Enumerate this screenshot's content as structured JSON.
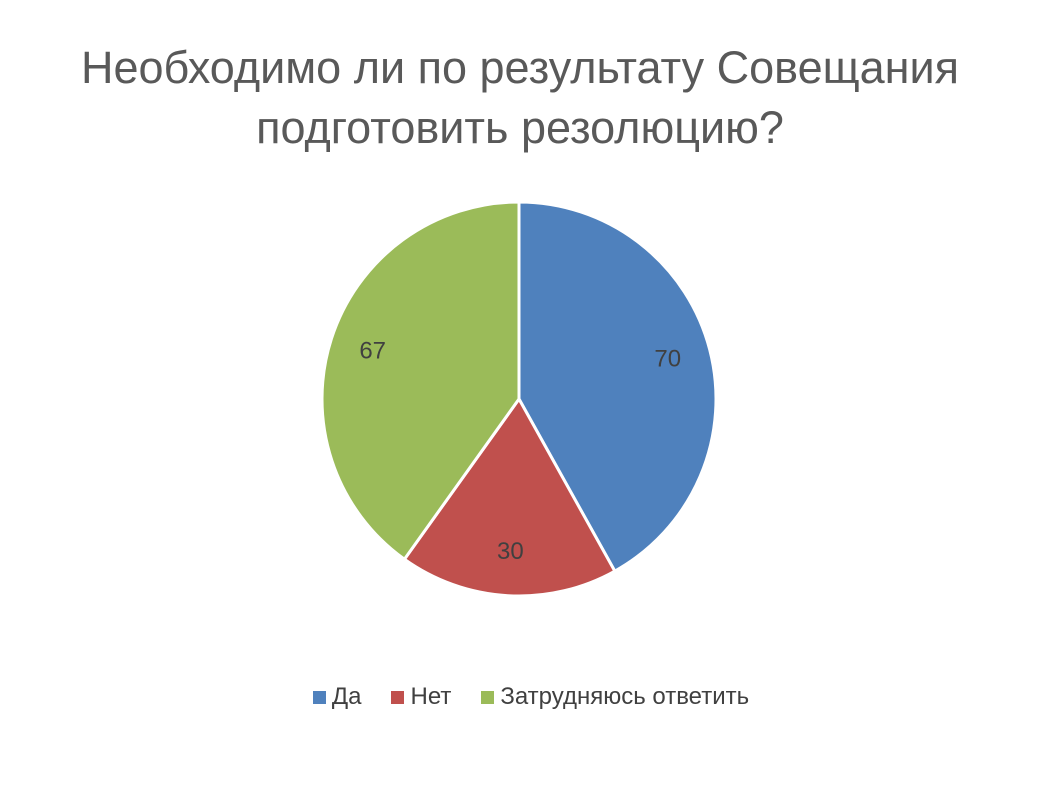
{
  "chart_data": {
    "type": "pie",
    "title": "Необходимо ли по результату Совещания подготовить резолюцию?",
    "categories": [
      "Да",
      "Нет",
      "Затрудняюсь ответить"
    ],
    "values": [
      70,
      30,
      67
    ],
    "colors": [
      "#4f81bd",
      "#c0504d",
      "#9bbb59"
    ],
    "legend": "bottom"
  }
}
